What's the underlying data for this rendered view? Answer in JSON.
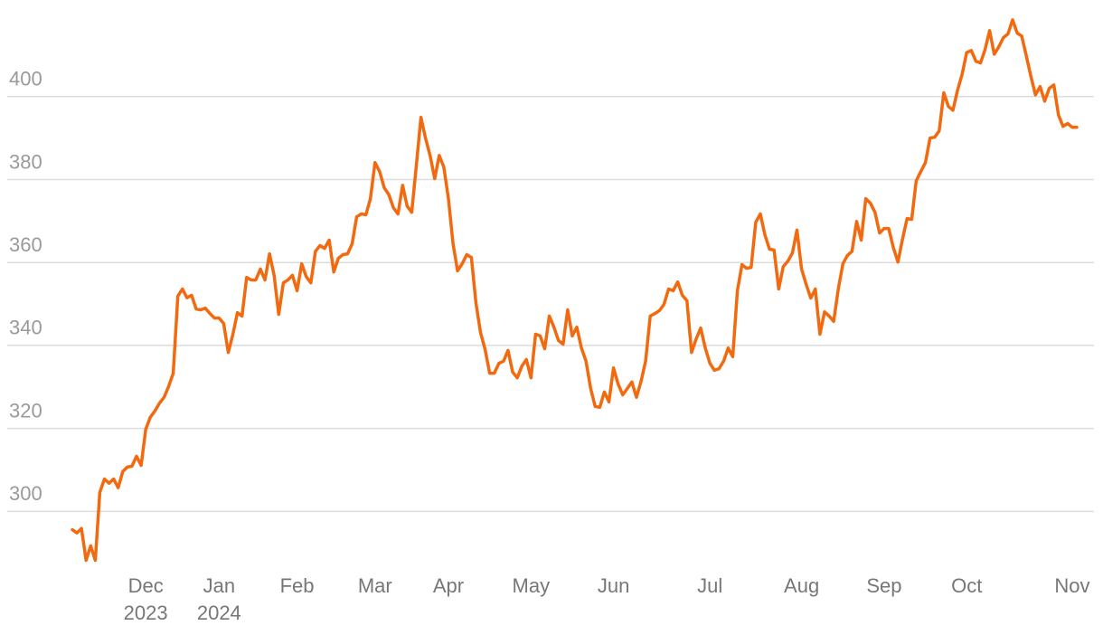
{
  "chart_data": {
    "type": "line",
    "series": [
      {
        "color": "#f26a10",
        "values": [
          295.6,
          294.8,
          295.9,
          288.2,
          291.7,
          288.2,
          304.6,
          307.8,
          306.8,
          307.8,
          305.7,
          309.6,
          310.7,
          310.9,
          313.3,
          311.1,
          319.8,
          322.7,
          324.2,
          326.1,
          327.5,
          330.1,
          333.3,
          351.9,
          353.6,
          351.5,
          352.1,
          348.8,
          348.6,
          349.0,
          347.7,
          346.6,
          346.6,
          345.3,
          338.3,
          342.7,
          347.9,
          347.1,
          356.4,
          355.8,
          355.8,
          358.4,
          355.8,
          362.1,
          356.9,
          347.5,
          355.1,
          355.8,
          356.9,
          353.2,
          359.7,
          356.6,
          355.1,
          362.7,
          364.1,
          363.4,
          365.4,
          357.7,
          361.0,
          361.9,
          362.1,
          364.5,
          371.0,
          371.7,
          371.5,
          375.4,
          384.1,
          381.9,
          378.0,
          376.4,
          373.2,
          371.7,
          378.6,
          373.6,
          372.1,
          383.4,
          395.0,
          390.0,
          385.8,
          380.2,
          385.8,
          383.0,
          375.4,
          364.5,
          358.0,
          359.7,
          361.9,
          361.2,
          350.3,
          343.1,
          339.0,
          333.3,
          333.3,
          335.7,
          336.2,
          338.8,
          333.6,
          332.2,
          335.0,
          336.6,
          332.2,
          342.7,
          342.3,
          339.2,
          347.1,
          344.4,
          341.2,
          340.3,
          348.6,
          342.3,
          344.4,
          339.4,
          336.2,
          329.6,
          325.3,
          325.1,
          328.8,
          326.4,
          334.6,
          330.7,
          328.1,
          329.6,
          331.2,
          327.5,
          331.4,
          336.2,
          347.1,
          347.7,
          348.4,
          349.9,
          353.6,
          353.2,
          355.3,
          352.1,
          350.8,
          338.3,
          341.5,
          344.2,
          339.4,
          335.7,
          334.0,
          334.4,
          336.2,
          339.4,
          337.3,
          353.2,
          359.5,
          358.6,
          358.8,
          369.7,
          371.7,
          366.7,
          363.2,
          363.0,
          353.6,
          359.0,
          360.3,
          362.3,
          367.8,
          358.4,
          354.7,
          351.4,
          353.6,
          342.7,
          348.1,
          347.1,
          345.8,
          353.6,
          359.7,
          361.7,
          362.7,
          369.9,
          365.4,
          375.4,
          374.3,
          372.1,
          367.1,
          368.2,
          368.2,
          363.6,
          360.1,
          365.6,
          370.6,
          370.4,
          379.7,
          381.9,
          384.1,
          390.0,
          390.2,
          391.7,
          400.9,
          397.6,
          396.7,
          401.5,
          405.4,
          410.6,
          411.1,
          408.5,
          408.1,
          411.3,
          415.9,
          410.2,
          412.0,
          414.2,
          415.1,
          418.5,
          415.3,
          414.6,
          409.8,
          404.8,
          400.4,
          402.4,
          398.9,
          402.0,
          402.8,
          395.6,
          392.8,
          393.5,
          392.6,
          392.6
        ]
      }
    ],
    "xlim": [
      0,
      219
    ],
    "xticks": [
      {
        "value": 16,
        "label": "Dec\n2023"
      },
      {
        "value": 32,
        "label": "Jan\n2024"
      },
      {
        "value": 49,
        "label": "Feb"
      },
      {
        "value": 66,
        "label": "Mar"
      },
      {
        "value": 82,
        "label": "Apr"
      },
      {
        "value": 100,
        "label": "May"
      },
      {
        "value": 118,
        "label": "Jun"
      },
      {
        "value": 139,
        "label": "Jul"
      },
      {
        "value": 159,
        "label": "Aug"
      },
      {
        "value": 177,
        "label": "Sep"
      },
      {
        "value": 195,
        "label": "Oct"
      },
      {
        "value": 218,
        "label": "Nov"
      }
    ],
    "ylim": [
      287,
      420
    ],
    "yticks": [
      300,
      320,
      340,
      360,
      380,
      400
    ],
    "grid": true
  }
}
